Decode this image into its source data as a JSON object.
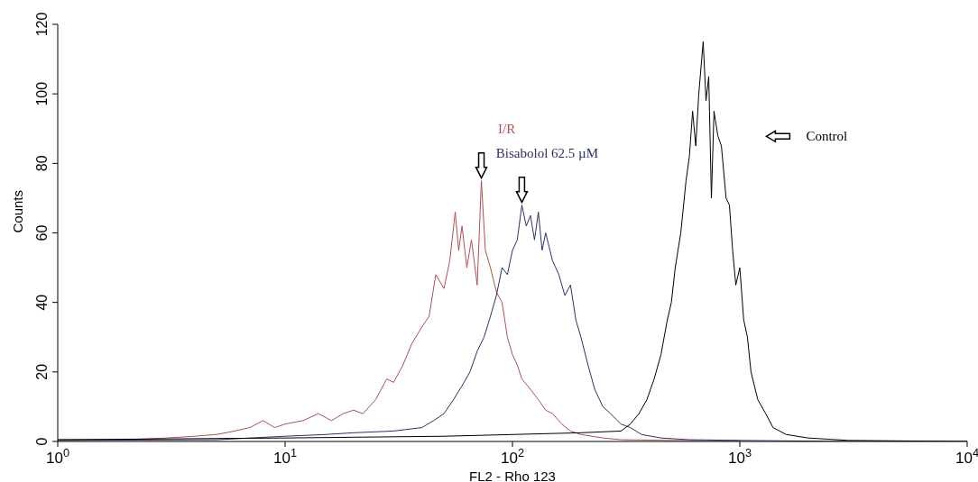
{
  "chart_data": {
    "type": "line",
    "xlabel": "FL2 - Rho 123",
    "ylabel": "Counts",
    "log": "x",
    "marker": "none",
    "line_style": "solid",
    "xlim": [
      1,
      10000
    ],
    "xticks": [
      {
        "value": 1,
        "label": "10$^{0}$"
      },
      {
        "value": 10,
        "label": "10$^{1}$"
      },
      {
        "value": 100,
        "label": "10$^{2}$"
      },
      {
        "value": 1000,
        "label": "10$^{3}$"
      },
      {
        "value": 10000,
        "label": "10$^{4}$"
      }
    ],
    "ylim": [
      0,
      120
    ],
    "yticks": [
      0,
      20,
      40,
      60,
      80,
      100,
      120
    ],
    "series": [
      {
        "name": "I/R",
        "color": "#b0504f",
        "x": [
          1,
          2,
          3,
          4,
          5,
          6,
          7,
          8,
          9,
          10,
          12,
          14,
          16,
          18,
          20,
          22,
          25,
          28,
          30,
          33,
          36,
          40,
          43,
          46,
          50,
          53,
          56,
          58,
          60,
          63,
          66,
          70,
          73,
          76,
          80,
          85,
          90,
          95,
          100,
          105,
          110,
          120,
          130,
          140,
          150,
          165,
          180,
          200,
          250,
          300,
          500,
          1000
        ],
        "values": [
          0.5,
          0.5,
          1,
          1.5,
          2,
          3,
          4,
          6,
          4,
          5,
          6,
          8,
          6,
          8,
          9,
          8,
          12,
          18,
          17,
          22,
          28,
          33,
          36,
          48,
          44,
          52,
          66,
          55,
          62,
          50,
          58,
          45,
          75,
          55,
          50,
          43,
          40,
          30,
          25,
          22,
          18,
          15,
          12,
          9,
          8,
          5,
          3,
          2,
          1,
          0.5,
          0.3,
          0.2
        ]
      },
      {
        "name": "Bisabolol 62.5 µM",
        "color": "#2c2f6e",
        "x": [
          1,
          5,
          10,
          15,
          20,
          30,
          40,
          45,
          50,
          55,
          60,
          65,
          70,
          75,
          80,
          85,
          90,
          95,
          100,
          105,
          110,
          115,
          120,
          125,
          130,
          135,
          140,
          150,
          160,
          170,
          180,
          190,
          200,
          215,
          230,
          250,
          270,
          300,
          330,
          370,
          450,
          600,
          1000,
          3000,
          10000
        ],
        "values": [
          0.3,
          0.5,
          1.5,
          2,
          2.5,
          3,
          4,
          6,
          8,
          12,
          16,
          20,
          26,
          30,
          36,
          42,
          50,
          48,
          55,
          58,
          68,
          62,
          65,
          58,
          66,
          55,
          60,
          52,
          48,
          42,
          45,
          35,
          30,
          22,
          15,
          10,
          8,
          5,
          4,
          2,
          1,
          0.5,
          0.3,
          0,
          0
        ]
      },
      {
        "name": "Control",
        "color": "#000000",
        "x": [
          1,
          10,
          50,
          100,
          200,
          300,
          330,
          360,
          390,
          420,
          450,
          480,
          500,
          520,
          550,
          580,
          600,
          620,
          640,
          660,
          690,
          710,
          730,
          750,
          770,
          800,
          830,
          870,
          900,
          930,
          960,
          1000,
          1040,
          1080,
          1120,
          1200,
          1300,
          1400,
          1600,
          2000,
          3000,
          10000
        ],
        "values": [
          0.5,
          1,
          1.5,
          2,
          2.5,
          3,
          5,
          8,
          12,
          18,
          25,
          35,
          40,
          50,
          60,
          75,
          82,
          95,
          85,
          100,
          115,
          98,
          105,
          70,
          95,
          88,
          85,
          70,
          68,
          55,
          45,
          50,
          35,
          30,
          20,
          12,
          8,
          4,
          2,
          1,
          0.3,
          0
        ]
      }
    ]
  }
}
